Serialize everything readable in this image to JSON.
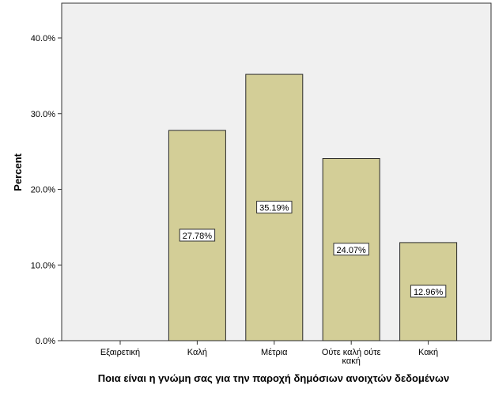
{
  "chart_data": {
    "type": "bar",
    "categories": [
      "Εξαιρετική",
      "Καλή",
      "Μέτρια",
      "Ούτε καλή ούτε κακή",
      "Κακή"
    ],
    "category_lines": [
      [
        "Εξαιρετική"
      ],
      [
        "Καλή"
      ],
      [
        "Μέτρια"
      ],
      [
        "Ούτε καλή ούτε",
        "κακή"
      ],
      [
        "Κακή"
      ]
    ],
    "values": [
      0,
      27.78,
      35.19,
      24.07,
      12.96
    ],
    "data_labels": [
      "",
      "27.78%",
      "35.19%",
      "24.07%",
      "12.96%"
    ],
    "xlabel": "Ποια είναι η γνώμη σας για την παροχή δημόσιων ανοιχτών δεδομένων",
    "ylabel": "Percent",
    "ylim": [
      0,
      40
    ],
    "yticks": [
      0,
      10,
      20,
      30,
      40
    ],
    "ytick_labels": [
      "0.0%",
      "10.0%",
      "20.0%",
      "30.0%",
      "40.0%"
    ],
    "grid": false,
    "legend": "none",
    "colors": {
      "plot_background": "#f0f0f0",
      "bar_fill": "#d3ce97",
      "bar_stroke": "#2a2a2a",
      "label_box": "#ffffff"
    }
  }
}
